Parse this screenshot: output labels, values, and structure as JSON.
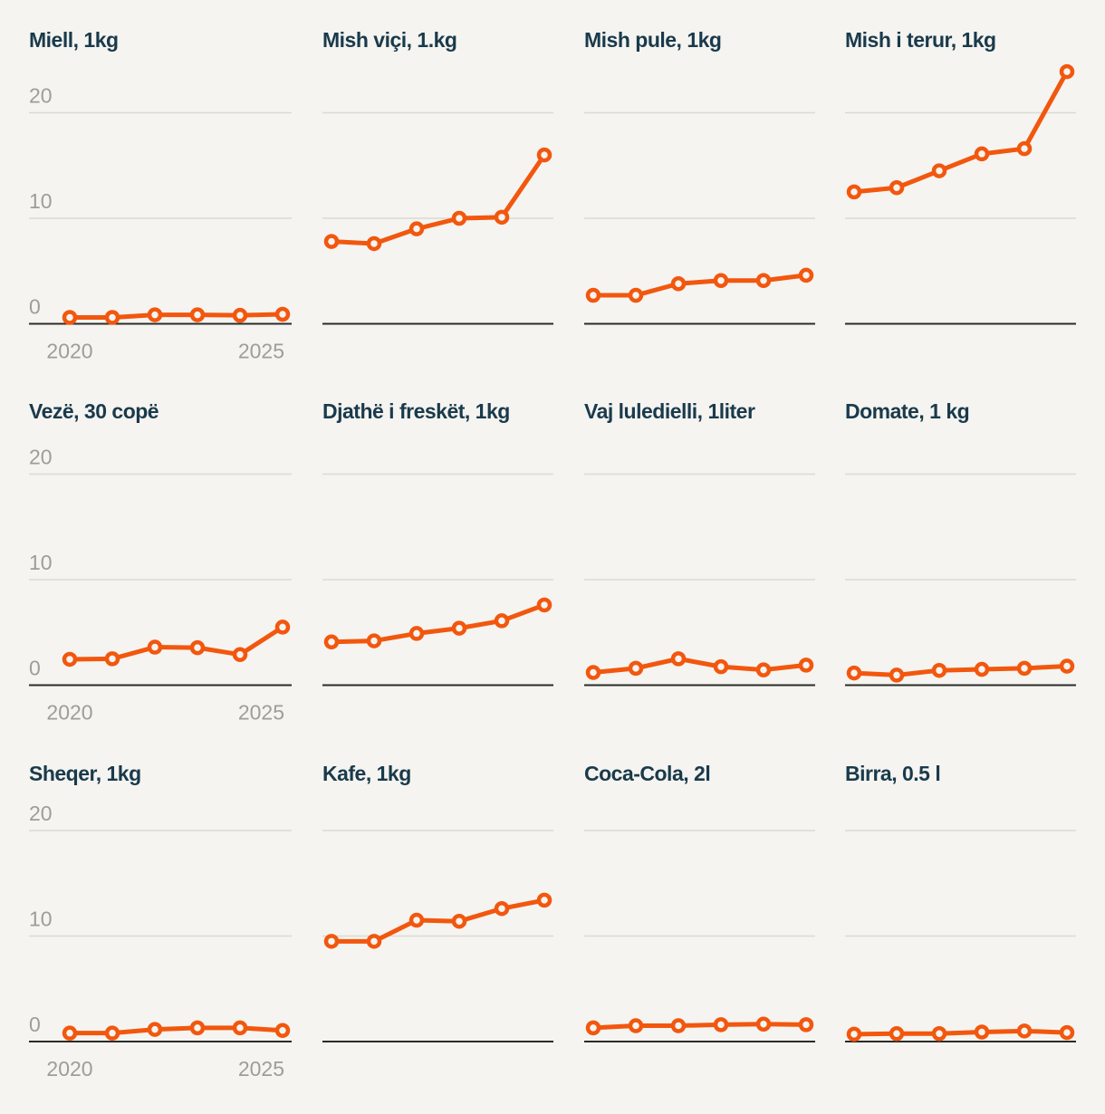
{
  "page": {
    "background": "#f5f4f0",
    "description": "Small-multiples grid of 12 line charts of grocery item prices, years 2020-2025"
  },
  "theme": {
    "accent": "#f2570e",
    "marker_fill": "#f5f4f0",
    "title_color": "#1a3a4c",
    "tick_color": "#9d9d99",
    "gridline_color": "#dbdad4",
    "axis_color": "#2b2b28"
  },
  "axes": {
    "y_ticks": [
      "20",
      "10",
      "0"
    ],
    "y_tick_values": [
      20,
      10,
      0
    ],
    "x_tick_labels": [
      "2020",
      "2025"
    ],
    "ylim": [
      0,
      25
    ],
    "grid": "horizontal-only",
    "note": "y and x tick labels shown only on first column panels"
  },
  "chart_data": [
    {
      "type": "line",
      "title": "Miell, 1kg",
      "x": [
        2020,
        2021,
        2022,
        2023,
        2024,
        2025
      ],
      "values": [
        0.6,
        0.6,
        0.85,
        0.85,
        0.8,
        0.9
      ],
      "ylim": [
        0,
        25
      ]
    },
    {
      "type": "line",
      "title": "Mish viçi, 1.kg",
      "x": [
        2020,
        2021,
        2022,
        2023,
        2024,
        2025
      ],
      "values": [
        7.8,
        7.6,
        9.0,
        10.0,
        10.1,
        16.0
      ],
      "ylim": [
        0,
        25
      ]
    },
    {
      "type": "line",
      "title": "Mish pule, 1kg",
      "x": [
        2020,
        2021,
        2022,
        2023,
        2024,
        2025
      ],
      "values": [
        2.7,
        2.7,
        3.8,
        4.1,
        4.1,
        4.6
      ],
      "ylim": [
        0,
        25
      ]
    },
    {
      "type": "line",
      "title": "Mish i terur, 1kg",
      "x": [
        2020,
        2021,
        2022,
        2023,
        2024,
        2025
      ],
      "values": [
        12.5,
        12.9,
        14.5,
        16.1,
        16.6,
        23.9
      ],
      "ylim": [
        0,
        25
      ]
    },
    {
      "type": "line",
      "title": "Vezë, 30 copë",
      "x": [
        2020,
        2021,
        2022,
        2023,
        2024,
        2025
      ],
      "values": [
        2.45,
        2.5,
        3.6,
        3.55,
        2.9,
        5.5
      ],
      "ylim": [
        0,
        25
      ]
    },
    {
      "type": "line",
      "title": "Djathë i freskët, 1kg",
      "x": [
        2020,
        2021,
        2022,
        2023,
        2024,
        2025
      ],
      "values": [
        4.1,
        4.2,
        4.9,
        5.4,
        6.1,
        7.6
      ],
      "ylim": [
        0,
        25
      ]
    },
    {
      "type": "line",
      "title": "Vaj luledielli, 1liter",
      "x": [
        2020,
        2021,
        2022,
        2023,
        2024,
        2025
      ],
      "values": [
        1.2,
        1.6,
        2.5,
        1.75,
        1.45,
        1.9
      ],
      "ylim": [
        0,
        25
      ]
    },
    {
      "type": "line",
      "title": "Domate, 1 kg",
      "x": [
        2020,
        2021,
        2022,
        2023,
        2024,
        2025
      ],
      "values": [
        1.15,
        0.95,
        1.4,
        1.5,
        1.6,
        1.8
      ],
      "ylim": [
        0,
        25
      ]
    },
    {
      "type": "line",
      "title": "Sheqer, 1kg",
      "x": [
        2020,
        2021,
        2022,
        2023,
        2024,
        2025
      ],
      "values": [
        0.8,
        0.8,
        1.15,
        1.3,
        1.3,
        1.05
      ],
      "ylim": [
        0,
        25
      ]
    },
    {
      "type": "line",
      "title": "Kafe, 1kg",
      "x": [
        2020,
        2021,
        2022,
        2023,
        2024,
        2025
      ],
      "values": [
        9.5,
        9.5,
        11.5,
        11.4,
        12.6,
        13.4
      ],
      "ylim": [
        0,
        25
      ]
    },
    {
      "type": "line",
      "title": "Coca-Cola, 2l",
      "x": [
        2020,
        2021,
        2022,
        2023,
        2024,
        2025
      ],
      "values": [
        1.3,
        1.5,
        1.5,
        1.6,
        1.65,
        1.6
      ],
      "ylim": [
        0,
        25
      ]
    },
    {
      "type": "line",
      "title": "Birra, 0.5 l",
      "x": [
        2020,
        2021,
        2022,
        2023,
        2024,
        2025
      ],
      "values": [
        0.7,
        0.75,
        0.75,
        0.9,
        1.0,
        0.85
      ],
      "ylim": [
        0,
        25
      ]
    }
  ]
}
